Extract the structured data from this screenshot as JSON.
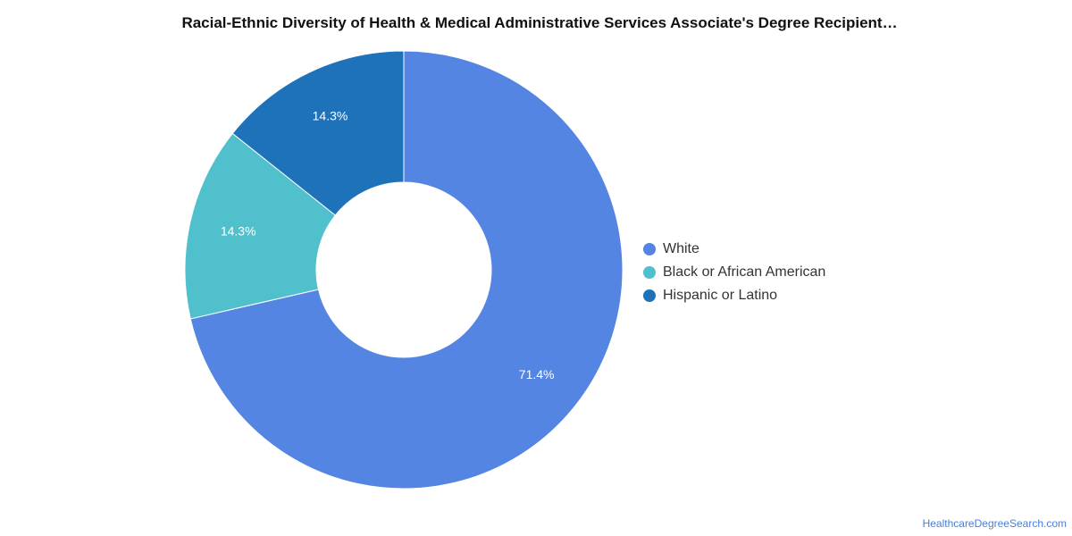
{
  "chart_data": {
    "type": "pie",
    "title": "Racial-Ethnic Diversity of Health & Medical Administrative Services Associate's Degree Recipient…",
    "series": [
      {
        "name": "White",
        "value": 71.4,
        "label": "71.4%",
        "color": "#5585e3"
      },
      {
        "name": "Black or African American",
        "value": 14.3,
        "label": "14.3%",
        "color": "#50c1cc"
      },
      {
        "name": "Hispanic or Latino",
        "value": 14.3,
        "label": "14.3%",
        "color": "#1d72ba"
      }
    ],
    "legend_position": "right",
    "donut": true
  },
  "source_text": "HealthcareDegreeSearch.com"
}
